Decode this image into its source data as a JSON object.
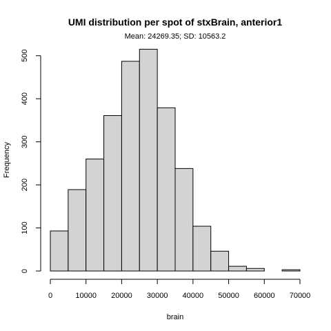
{
  "chart_data": {
    "type": "bar",
    "title": "UMI distribution per spot of stxBrain, anterior1",
    "subtitle": "Mean: 24269.35; SD: 10563.2",
    "xlabel": "brain",
    "ylabel": "Frequency",
    "bin_edges": [
      0,
      5000,
      10000,
      15000,
      20000,
      25000,
      30000,
      35000,
      40000,
      45000,
      50000,
      55000,
      60000,
      65000,
      70000
    ],
    "values": [
      93,
      189,
      260,
      361,
      487,
      515,
      379,
      238,
      104,
      46,
      11,
      6,
      0,
      3
    ],
    "xlim": [
      0,
      70000
    ],
    "ylim": [
      0,
      520
    ],
    "xticks": [
      0,
      10000,
      20000,
      30000,
      40000,
      50000,
      60000,
      70000
    ],
    "yticks": [
      0,
      100,
      200,
      300,
      400,
      500
    ],
    "bar_color": "#d3d3d3",
    "grid": false
  }
}
